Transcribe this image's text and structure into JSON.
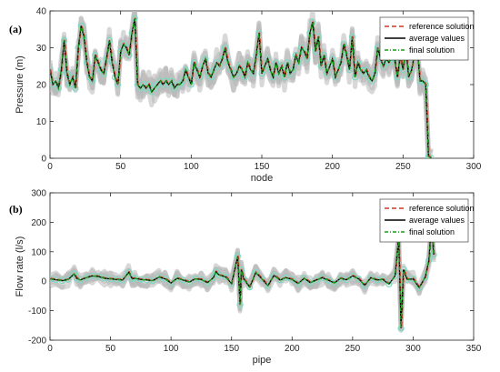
{
  "chart_data": [
    {
      "type": "line",
      "panel_label": "(a)",
      "xlabel": "node",
      "ylabel": "Pressure (m)",
      "xlim": [
        0,
        300
      ],
      "ylim": [
        0,
        40
      ],
      "xticks": [
        "0",
        "50",
        "100",
        "150",
        "200",
        "250",
        "300"
      ],
      "yticks": [
        "0",
        "10",
        "20",
        "30",
        "40"
      ],
      "legend": [
        "reference solution",
        "average values",
        "final solution"
      ],
      "legend_position": "top-right",
      "colors": {
        "reference": "#d9341f",
        "average": "#000000",
        "final": "#169e16",
        "samples": "#b8b8b8",
        "markers": "#7ed9c2"
      },
      "x": [
        0,
        2,
        4,
        6,
        8,
        10,
        12,
        14,
        16,
        18,
        20,
        22,
        24,
        26,
        28,
        30,
        32,
        34,
        36,
        38,
        40,
        42,
        44,
        46,
        48,
        50,
        52,
        54,
        56,
        58,
        60,
        62,
        64,
        66,
        68,
        70,
        72,
        74,
        76,
        78,
        80,
        82,
        84,
        86,
        88,
        90,
        92,
        94,
        96,
        98,
        100,
        102,
        104,
        106,
        108,
        110,
        112,
        114,
        116,
        118,
        120,
        122,
        124,
        126,
        128,
        130,
        132,
        134,
        136,
        138,
        140,
        142,
        144,
        146,
        148,
        150,
        152,
        154,
        156,
        158,
        160,
        162,
        164,
        166,
        168,
        170,
        172,
        174,
        176,
        178,
        180,
        182,
        184,
        186,
        188,
        190,
        192,
        194,
        196,
        198,
        200,
        202,
        204,
        206,
        208,
        210,
        212,
        214,
        216,
        218,
        220,
        222,
        224,
        226,
        228,
        230,
        232,
        234,
        236,
        238,
        240,
        242,
        244,
        246,
        248,
        250,
        252,
        254,
        256,
        258,
        260,
        262,
        264,
        266,
        268,
        270
      ],
      "series": [
        {
          "name": "average values",
          "values": [
            24,
            20,
            21,
            19,
            24,
            32,
            23,
            20,
            22,
            19,
            30,
            36,
            33,
            26,
            22,
            21,
            28,
            26,
            24,
            23,
            27,
            32,
            26,
            22,
            20,
            29,
            31,
            30,
            28,
            34,
            38,
            20,
            19,
            20,
            19,
            20,
            18,
            19,
            20,
            21,
            20,
            21,
            20,
            21,
            19,
            20,
            20,
            21,
            24,
            22,
            20,
            26,
            24,
            22,
            25,
            27,
            23,
            22,
            24,
            26,
            25,
            27,
            30,
            26,
            24,
            22,
            23,
            25,
            24,
            22,
            26,
            24,
            23,
            28,
            34,
            23,
            25,
            27,
            24,
            22,
            26,
            23,
            25,
            22,
            26,
            23,
            24,
            28,
            26,
            30,
            29,
            27,
            34,
            37,
            29,
            33,
            25,
            28,
            23,
            25,
            27,
            22,
            24,
            26,
            31,
            28,
            24,
            33,
            22,
            26,
            24,
            23,
            24,
            22,
            21,
            23,
            30,
            27,
            25,
            27,
            26,
            28,
            27,
            22,
            28,
            24,
            30,
            22,
            24,
            28,
            30,
            21,
            21,
            20,
            0.5,
            0
          ]
        }
      ]
    },
    {
      "type": "line",
      "panel_label": "(b)",
      "xlabel": "pipe",
      "ylabel": "Flow rate (l/s)",
      "xlim": [
        0,
        350
      ],
      "ylim": [
        -200,
        300
      ],
      "xticks": [
        "0",
        "50",
        "100",
        "150",
        "200",
        "250",
        "300",
        "350"
      ],
      "yticks": [
        "-200",
        "-100",
        "0",
        "100",
        "200",
        "300"
      ],
      "legend": [
        "reference solution",
        "average values",
        "final solution"
      ],
      "legend_position": "top-right",
      "colors": {
        "reference": "#d9341f",
        "average": "#000000",
        "final": "#169e16",
        "samples": "#b8b8b8",
        "markers": "#7ed9c2"
      },
      "x": [
        0,
        5,
        10,
        15,
        20,
        22,
        25,
        30,
        35,
        40,
        45,
        50,
        55,
        60,
        65,
        68,
        70,
        75,
        80,
        85,
        90,
        95,
        100,
        105,
        110,
        115,
        120,
        125,
        130,
        135,
        137,
        140,
        145,
        150,
        155,
        157,
        158,
        160,
        165,
        170,
        175,
        180,
        185,
        190,
        195,
        200,
        205,
        210,
        215,
        220,
        225,
        230,
        235,
        240,
        245,
        250,
        255,
        260,
        265,
        270,
        275,
        280,
        285,
        288,
        290,
        292,
        295,
        300,
        305,
        310,
        313,
        315,
        317
      ],
      "series": [
        {
          "name": "average values",
          "values": [
            8,
            5,
            2,
            6,
            25,
            10,
            4,
            12,
            18,
            16,
            10,
            8,
            6,
            4,
            30,
            8,
            10,
            6,
            4,
            2,
            14,
            8,
            -6,
            10,
            4,
            -3,
            8,
            6,
            -5,
            12,
            32,
            20,
            15,
            -8,
            85,
            -80,
            40,
            8,
            -20,
            30,
            8,
            -15,
            20,
            4,
            12,
            6,
            -8,
            10,
            -5,
            4,
            12,
            3,
            -6,
            10,
            5,
            18,
            8,
            -14,
            12,
            4,
            6,
            -10,
            18,
            150,
            -160,
            40,
            6,
            8,
            -22,
            14,
            70,
            190,
            90
          ]
        }
      ]
    }
  ]
}
